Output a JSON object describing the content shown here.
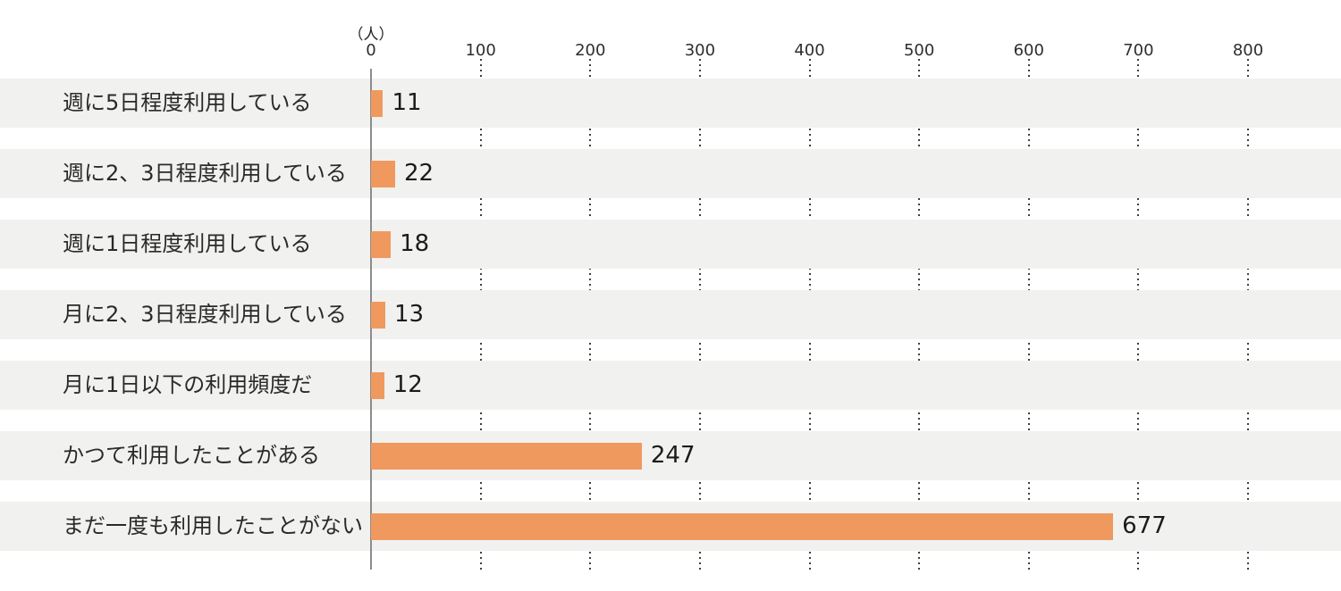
{
  "chart_data": {
    "type": "bar",
    "orientation": "horizontal",
    "title": "",
    "unit_label": "（人）",
    "categories": [
      "週に5日程度利用している",
      "週に2、3日程度利用している",
      "週に1日程度利用している",
      "月に2、3日程度利用している",
      "月に1日以下の利用頻度だ",
      "かつて利用したことがある",
      "まだ一度も利用したことがない"
    ],
    "values": [
      11,
      22,
      18,
      13,
      12,
      247,
      677
    ],
    "value_labels": [
      "11",
      "22",
      "18",
      "13",
      "12",
      "247",
      "677"
    ],
    "x_ticks": [
      "0",
      "100",
      "200",
      "300",
      "400",
      "500",
      "600",
      "700",
      "800"
    ],
    "xlim": [
      0,
      800
    ],
    "grid": "dotted-vertical-ticks-in-row-gaps",
    "legend": "none",
    "colors": {
      "bar": "#f0995f",
      "row_background": "#f1f1f0",
      "axis_line": "#8c8c8c",
      "tick_dots": "#3f3f3f",
      "text": "#2a2a2a"
    }
  }
}
